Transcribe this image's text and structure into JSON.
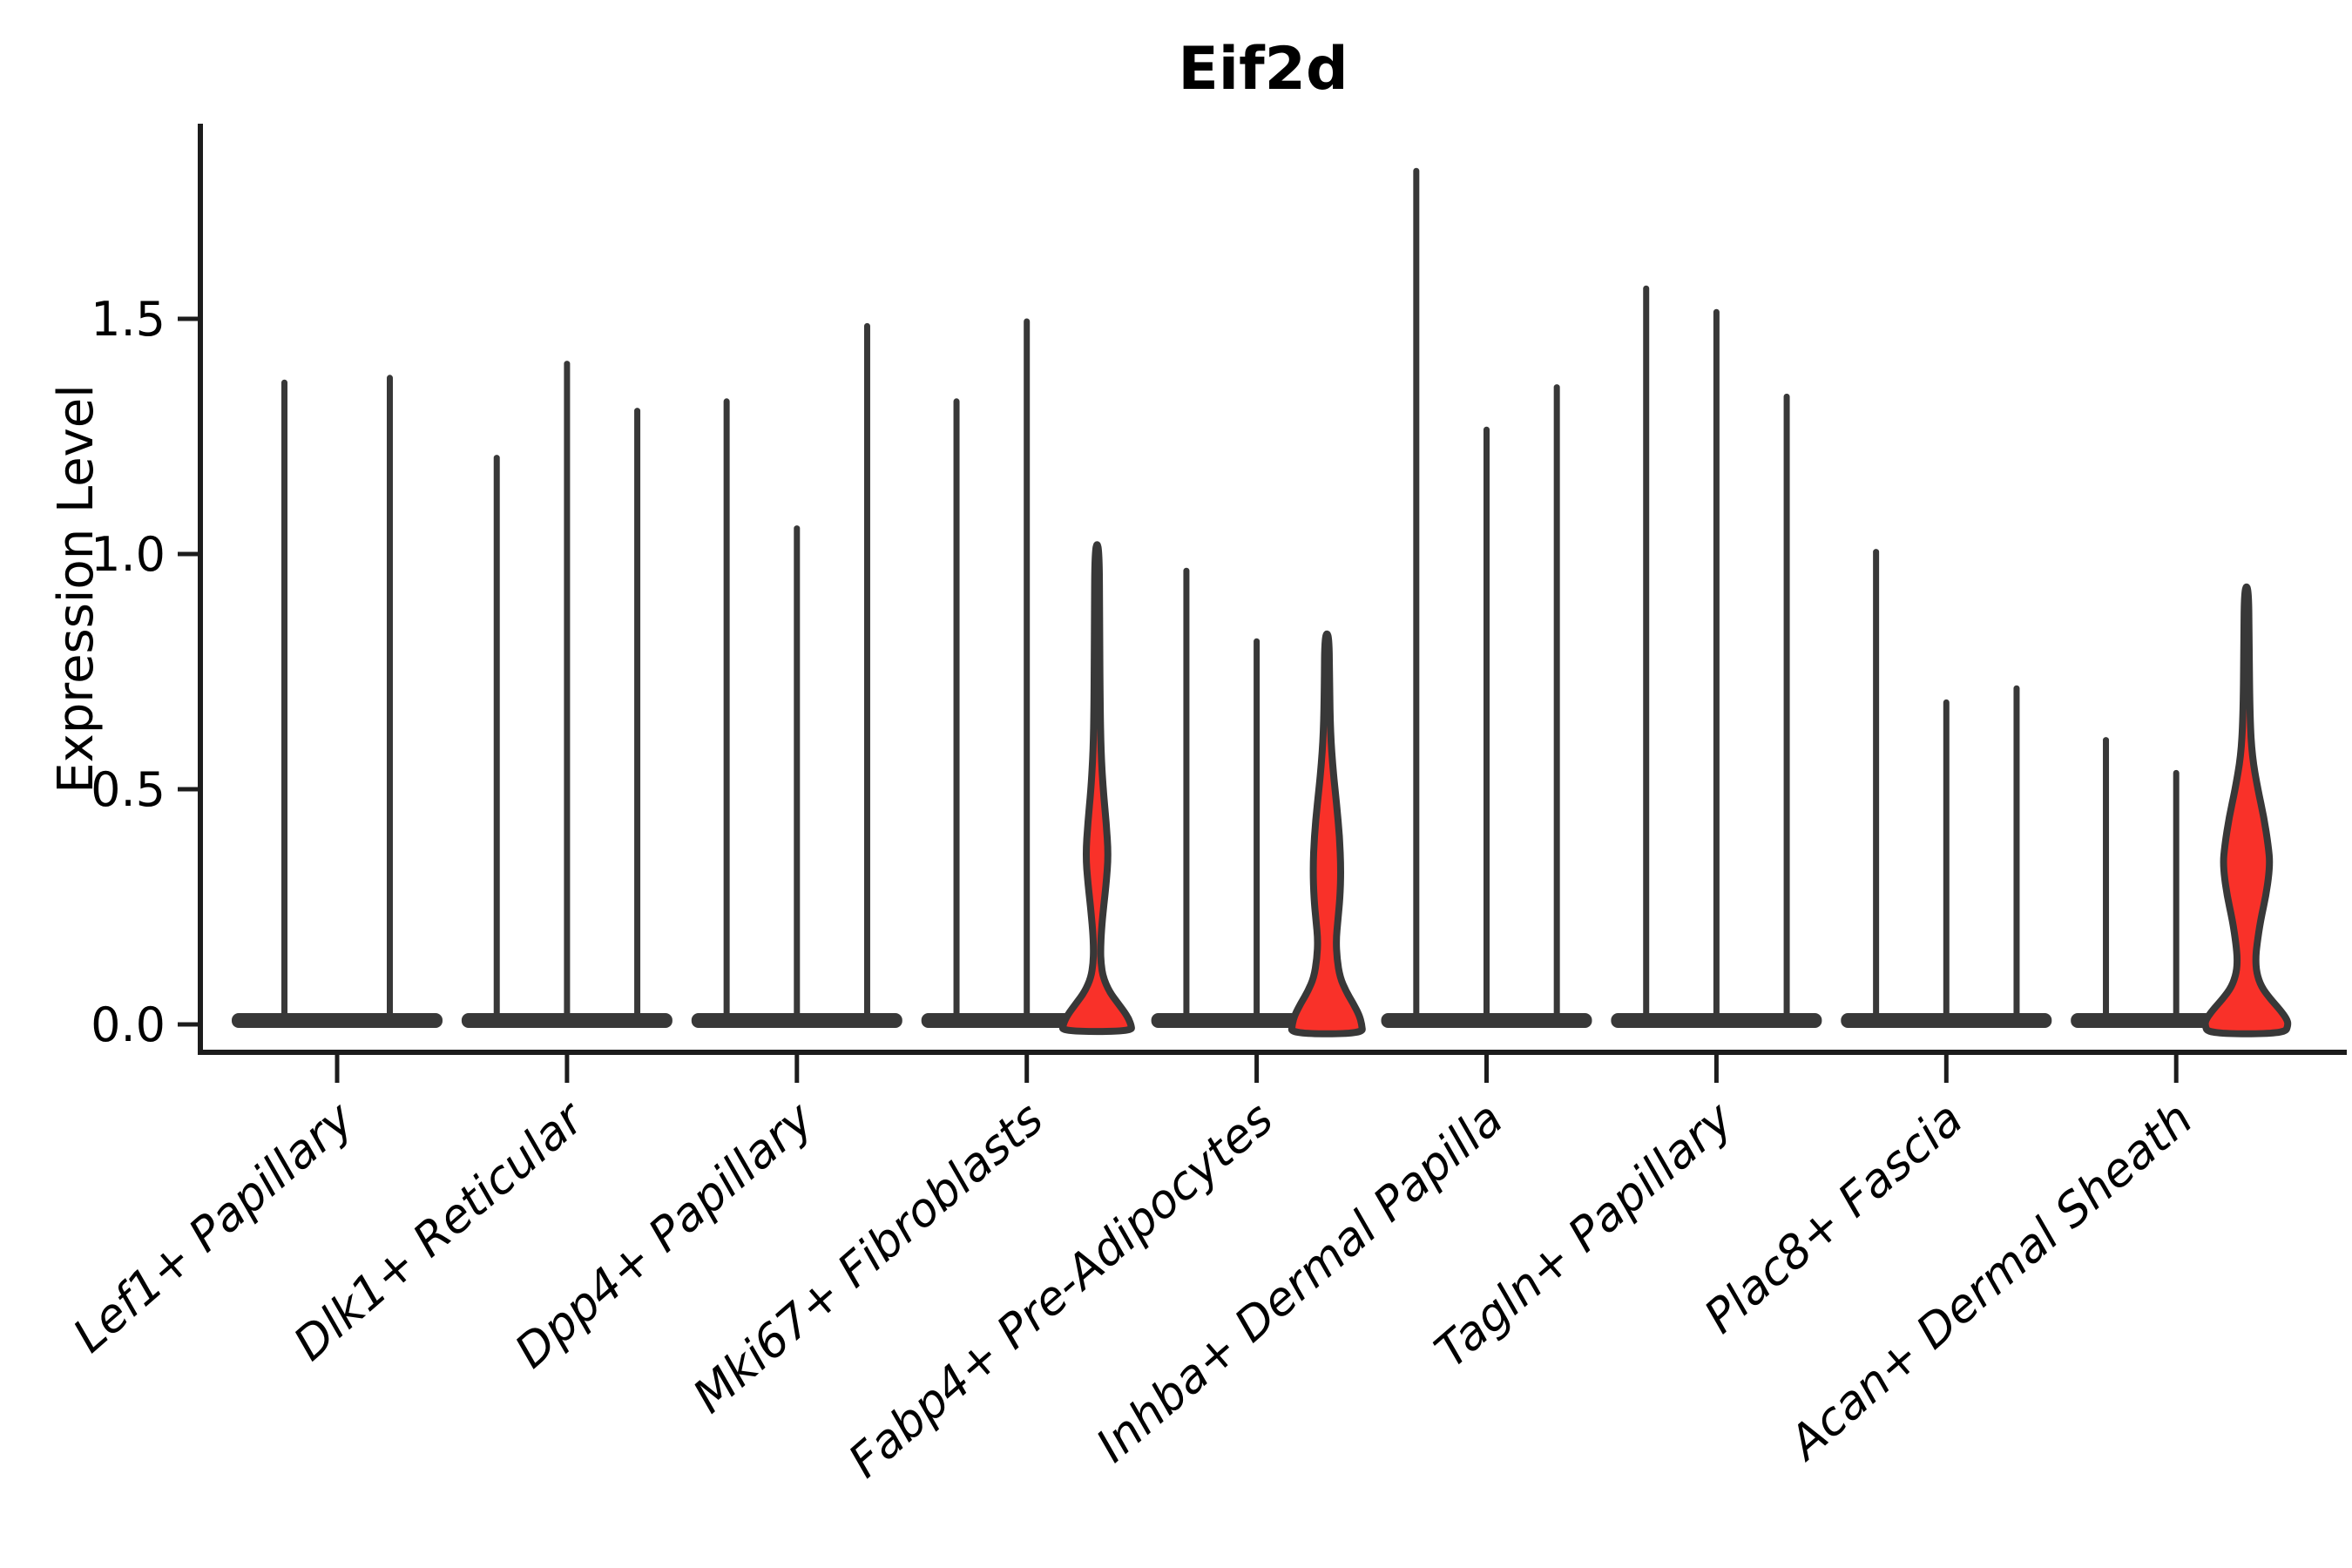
{
  "chart_data": {
    "type": "violin",
    "title": "Eif2d",
    "ylabel": "Expression Level",
    "xlabel": "",
    "grid": false,
    "legend": "none",
    "ylim": [
      -0.09,
      1.91
    ],
    "yticks": [
      "0.0",
      "0.5",
      "1.0",
      "1.5"
    ],
    "ytick_values": [
      0.0,
      0.5,
      1.0,
      1.5
    ],
    "categories": [
      "Lef1+ Papillary",
      "Dlk1+ Reticular",
      "Dpp4+ Papillary",
      "Mki67+ Fibroblasts",
      "Fabp4+ Pre-Adipocytes",
      "Inhba+ Dermal Papilla",
      "Tagln+ Papillary",
      "Plac8+ Fascia",
      "Acan+ Dermal Sheath"
    ],
    "groups": [
      {
        "label": "Lef1+ Papillary",
        "violin_maxima": [
          1.37,
          1.38
        ],
        "highlighted": [
          false,
          false
        ]
      },
      {
        "label": "Dlk1+ Reticular",
        "violin_maxima": [
          1.21,
          1.41,
          1.31
        ],
        "highlighted": [
          false,
          false,
          false
        ]
      },
      {
        "label": "Dpp4+ Papillary",
        "violin_maxima": [
          1.33,
          1.06,
          1.49
        ],
        "highlighted": [
          false,
          false,
          false
        ]
      },
      {
        "label": "Mki67+ Fibroblasts",
        "violin_maxima": [
          1.33,
          1.5,
          1.02
        ],
        "highlighted": [
          false,
          false,
          true
        ]
      },
      {
        "label": "Fabp4+ Pre-Adipocytes",
        "violin_maxima": [
          0.97,
          0.82,
          0.83
        ],
        "highlighted": [
          false,
          false,
          true
        ]
      },
      {
        "label": "Inhba+ Dermal Papilla",
        "violin_maxima": [
          1.82,
          1.27,
          1.36
        ],
        "highlighted": [
          false,
          false,
          false
        ]
      },
      {
        "label": "Tagln+ Papillary",
        "violin_maxima": [
          1.57,
          1.52,
          1.34
        ],
        "highlighted": [
          false,
          false,
          false
        ]
      },
      {
        "label": "Plac8+ Fascia",
        "violin_maxima": [
          1.01,
          0.69,
          0.72
        ],
        "highlighted": [
          false,
          false,
          false
        ]
      },
      {
        "label": "Acan+ Dermal Sheath",
        "violin_maxima": [
          0.61,
          0.54,
          0.93
        ],
        "highlighted": [
          false,
          false,
          true
        ]
      }
    ],
    "highlight_profiles": {
      "3-2": [
        [
          1.02,
          2.5
        ],
        [
          0.85,
          3
        ],
        [
          0.68,
          3.5
        ],
        [
          0.58,
          4.5
        ],
        [
          0.5,
          7
        ],
        [
          0.43,
          10.5
        ],
        [
          0.36,
          13
        ],
        [
          0.3,
          10.5
        ],
        [
          0.25,
          7.5
        ],
        [
          0.2,
          5
        ],
        [
          0.16,
          4
        ],
        [
          0.13,
          4.5
        ],
        [
          0.1,
          7
        ],
        [
          0.07,
          14
        ],
        [
          0.045,
          24
        ],
        [
          0.02,
          34
        ],
        [
          0.0,
          39
        ],
        [
          -0.015,
          40
        ]
      ],
      "4-2": [
        [
          0.83,
          2.5
        ],
        [
          0.72,
          3
        ],
        [
          0.62,
          4
        ],
        [
          0.54,
          7
        ],
        [
          0.47,
          11
        ],
        [
          0.4,
          14.5
        ],
        [
          0.33,
          16
        ],
        [
          0.27,
          15
        ],
        [
          0.22,
          12.5
        ],
        [
          0.18,
          10.5
        ],
        [
          0.14,
          11.5
        ],
        [
          0.1,
          15
        ],
        [
          0.07,
          22
        ],
        [
          0.045,
          30
        ],
        [
          0.02,
          37
        ],
        [
          0.0,
          40
        ],
        [
          -0.02,
          41
        ]
      ],
      "8-2": [
        [
          0.93,
          2.5
        ],
        [
          0.8,
          3
        ],
        [
          0.65,
          4
        ],
        [
          0.57,
          6.5
        ],
        [
          0.5,
          13
        ],
        [
          0.44,
          20
        ],
        [
          0.38,
          25
        ],
        [
          0.34,
          27
        ],
        [
          0.28,
          23
        ],
        [
          0.22,
          16
        ],
        [
          0.17,
          12
        ],
        [
          0.14,
          10.5
        ],
        [
          0.11,
          11.5
        ],
        [
          0.08,
          17
        ],
        [
          0.055,
          27
        ],
        [
          0.03,
          39
        ],
        [
          0.012,
          46
        ],
        [
          0.0,
          48
        ],
        [
          -0.02,
          44
        ]
      ]
    },
    "colors": {
      "highlight_fill": "#f93129",
      "violin_outline": "#383838",
      "axis": "#1c1c1c",
      "text": "#000000",
      "background": "#ffffff"
    },
    "x_label_rotation_deg": -41
  }
}
